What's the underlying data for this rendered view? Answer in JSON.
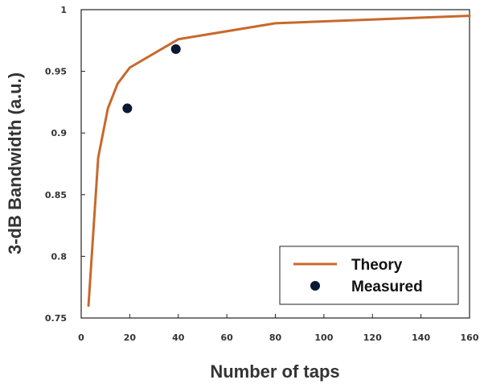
{
  "chart_data": {
    "type": "line",
    "title": "",
    "xlabel": "Number of taps",
    "ylabel": "3-dB Bandwidth (a.u.)",
    "xlim": [
      0,
      160
    ],
    "ylim": [
      0.75,
      1.0
    ],
    "x_ticks": [
      0,
      20,
      40,
      60,
      80,
      100,
      120,
      140,
      160
    ],
    "x_tick_labels": [
      "0",
      "20",
      "40",
      "60",
      "80",
      "100",
      "120",
      "140",
      "160"
    ],
    "y_ticks": [
      0.75,
      0.8,
      0.85,
      0.9,
      0.95,
      1.0
    ],
    "y_tick_labels": [
      "0.75",
      "0.8",
      "0.85",
      "0.9",
      "0.95",
      "1"
    ],
    "grid": false,
    "legend_position": "bottom-right",
    "series": [
      {
        "name": "Theory",
        "kind": "line",
        "color": "#c8692b",
        "x": [
          3,
          7,
          11,
          15,
          20,
          40,
          80,
          160
        ],
        "y": [
          0.76,
          0.88,
          0.92,
          0.94,
          0.953,
          0.976,
          0.989,
          0.995
        ]
      },
      {
        "name": "Measured",
        "kind": "scatter",
        "color": "#0b1a33",
        "x": [
          19,
          39
        ],
        "y": [
          0.92,
          0.968
        ]
      }
    ]
  }
}
